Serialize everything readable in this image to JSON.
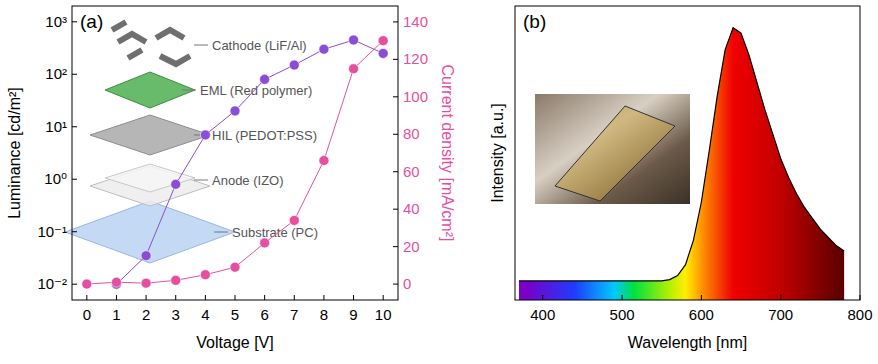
{
  "chart_data": [
    {
      "type": "line",
      "title": "(a)",
      "x_label": "Voltage [V]",
      "y_label": "Luminance [cd/m²]",
      "y2_label": "Current density [mA/cm²]",
      "x": [
        0,
        1,
        2,
        3,
        4,
        5,
        6,
        7,
        8,
        9,
        10
      ],
      "xlim": [
        -0.5,
        10.5
      ],
      "xticks": [
        0,
        1,
        2,
        3,
        4,
        5,
        6,
        7,
        8,
        9,
        10
      ],
      "log": "y",
      "ylim": [
        0.005,
        2000
      ],
      "yticks": [
        {
          "value": 0.01,
          "label": "10⁻²"
        },
        {
          "value": 0.1,
          "label": "10⁻¹"
        },
        {
          "value": 1,
          "label": "10⁰"
        },
        {
          "value": 10,
          "label": "10¹"
        },
        {
          "value": 100,
          "label": "10²"
        },
        {
          "value": 1000,
          "label": "10³"
        }
      ],
      "y2lim": [
        -8.5,
        148.5
      ],
      "y2ticks": [
        0,
        20,
        40,
        60,
        80,
        100,
        120,
        140
      ],
      "annotations": [
        "Cathode (LiF/Al)",
        "EML (Red polymer)",
        "HIL (PEDOT:PSS)",
        "Anode (IZO)",
        "Substrate (PC)"
      ],
      "series": [
        {
          "color": "#8a4ed6",
          "marker": "circle",
          "values": [
            null,
            0.01,
            0.035,
            0.8,
            7,
            20,
            80,
            150,
            300,
            450,
            250
          ]
        },
        {
          "color": "#e64fa0",
          "marker": "circle",
          "axis": "y2",
          "values": [
            0,
            1,
            0.5,
            2,
            5,
            9,
            22,
            34,
            66,
            115,
            130
          ]
        }
      ]
    },
    {
      "type": "area",
      "title": "(b)",
      "x_label": "Wavelength [nm]",
      "y_label": "Intensity [a.u.]",
      "tick_labels": "x",
      "x": [
        370,
        380,
        390,
        400,
        410,
        420,
        430,
        440,
        450,
        460,
        470,
        480,
        490,
        500,
        510,
        520,
        530,
        540,
        550,
        560,
        570,
        580,
        590,
        600,
        610,
        620,
        630,
        640,
        650,
        660,
        670,
        680,
        690,
        700,
        710,
        720,
        730,
        740,
        750,
        760,
        770,
        780
      ],
      "xlim": [
        365,
        800
      ],
      "xticks": [
        400,
        500,
        600,
        700,
        800
      ],
      "ylim": [
        0,
        1.08
      ],
      "series": [
        {
          "color": "#000000",
          "values": [
            0.07,
            0.07,
            0.07,
            0.07,
            0.07,
            0.07,
            0.07,
            0.07,
            0.07,
            0.07,
            0.07,
            0.07,
            0.07,
            0.07,
            0.07,
            0.07,
            0.07,
            0.07,
            0.07,
            0.075,
            0.09,
            0.13,
            0.22,
            0.36,
            0.55,
            0.75,
            0.92,
            1.0,
            0.98,
            0.9,
            0.8,
            0.7,
            0.61,
            0.52,
            0.45,
            0.39,
            0.34,
            0.3,
            0.26,
            0.23,
            0.2,
            0.18
          ]
        }
      ]
    }
  ]
}
